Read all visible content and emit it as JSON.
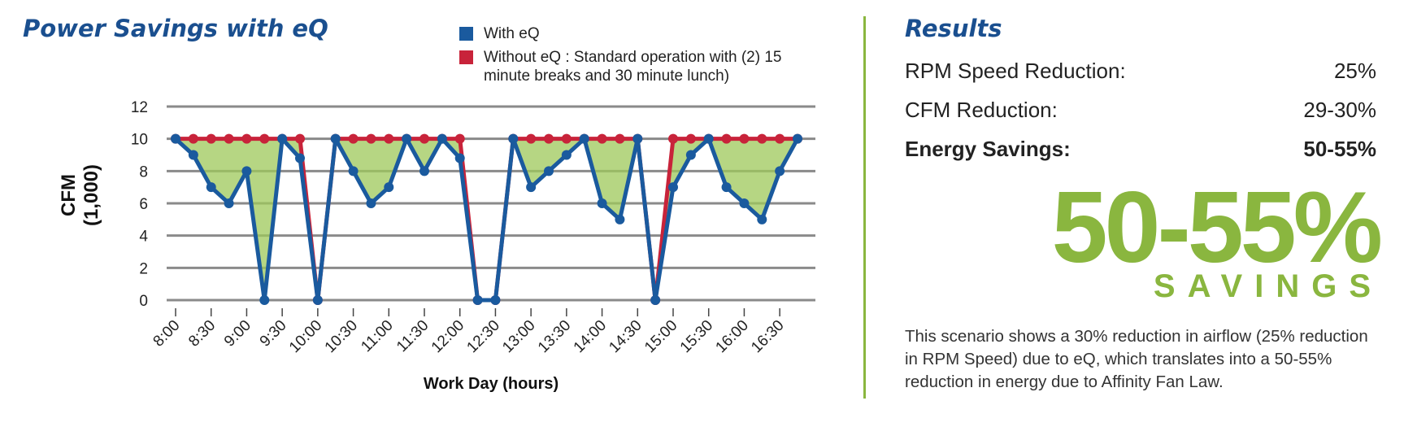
{
  "chart_data": {
    "type": "line",
    "title": "Power Savings with eQ",
    "x_label": "Work Day (hours)",
    "y_label": [
      "CFM",
      "(1,000)"
    ],
    "categories": [
      "8:00",
      null,
      "8:30",
      null,
      "9:00",
      null,
      "9:30",
      null,
      "10:00",
      null,
      "10:30",
      null,
      "11:00",
      null,
      "11:30",
      null,
      "12:00",
      null,
      "12:30",
      null,
      "13:00",
      null,
      "13:30",
      null,
      "14:00",
      null,
      "14:30",
      null,
      "15:00",
      null,
      "15:30",
      null,
      "16:00",
      null,
      "16:30",
      null
    ],
    "series": [
      {
        "name": "Without eQ : Standard operation with (2) 15 minute breaks and 30 minute lunch)",
        "color": "#c8233a",
        "values": [
          10,
          10,
          10,
          10,
          10,
          10,
          10,
          10,
          0,
          10,
          10,
          10,
          10,
          10,
          10,
          10,
          10,
          0,
          0,
          10,
          10,
          10,
          10,
          10,
          10,
          10,
          10,
          0,
          10,
          10,
          10,
          10,
          10,
          10,
          10,
          10
        ]
      },
      {
        "name": "With eQ",
        "color": "#1a5a9e",
        "values": [
          10,
          9,
          7,
          6,
          8,
          0,
          10,
          8.8,
          0,
          10,
          8,
          6,
          7,
          10,
          8,
          10,
          8.8,
          0,
          0,
          10,
          7,
          8,
          9,
          10,
          6,
          5,
          10,
          0,
          7,
          9,
          10,
          7,
          6,
          5,
          8,
          10
        ]
      }
    ],
    "legend_order": [
      1,
      0
    ],
    "fill_color": "#9dc85a",
    "ylim": [
      0,
      12
    ],
    "yticks": [
      0,
      2,
      4,
      6,
      8,
      10,
      12
    ],
    "grid": true
  },
  "results": {
    "title": "Results",
    "rows": [
      {
        "label": "RPM Speed Reduction:",
        "value": "25%"
      },
      {
        "label": "CFM Reduction:",
        "value": "29-30%"
      },
      {
        "label": "Energy Savings:",
        "value": "50-55%"
      }
    ],
    "headline": "50-55%",
    "headline_caption": "SAVINGS",
    "description": "This scenario shows a 30% reduction in airflow (25% reduction in RPM Speed) due to eQ, which translates into a 50-55% reduction in energy due to Affinity Fan Law."
  }
}
